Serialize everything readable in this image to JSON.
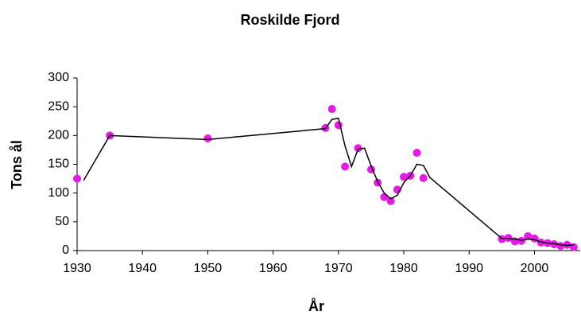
{
  "chart_data": {
    "type": "scatter",
    "title": "Roskilde Fjord",
    "x_label": "År",
    "y_label": "Tons ål",
    "xlim": [
      1930,
      2007
    ],
    "xticks": [
      1930,
      1940,
      1950,
      1960,
      1970,
      1980,
      1990,
      2000
    ],
    "ylim": [
      0,
      300
    ],
    "yticks": [
      0,
      50,
      100,
      150,
      200,
      250,
      300
    ],
    "grid": false,
    "series": [
      {
        "type": "scatter",
        "color": "#e619e6",
        "x": [
          1930,
          1935,
          1950,
          1968,
          1969,
          1970,
          1971,
          1973,
          1975,
          1976,
          1977,
          1978,
          1979,
          1980,
          1981,
          1982,
          1983,
          1995,
          1996,
          1997,
          1998,
          1999,
          2000,
          2001,
          2002,
          2003,
          2004,
          2005,
          2006
        ],
        "values": [
          125,
          200,
          195,
          213,
          246,
          218,
          146,
          178,
          141,
          118,
          93,
          86,
          106,
          128,
          130,
          170,
          126,
          20,
          22,
          16,
          17,
          25,
          21,
          14,
          13,
          11,
          8,
          10,
          6
        ]
      },
      {
        "type": "line",
        "color": "#000000",
        "x": [
          1931,
          1935,
          1950,
          1968,
          1969,
          1970,
          1971,
          1972,
          1973,
          1974,
          1975,
          1976,
          1977,
          1978,
          1979,
          1980,
          1981,
          1982,
          1983,
          1984,
          1995,
          1996,
          1997,
          1998,
          1999,
          2000,
          2001,
          2002,
          2003,
          2004,
          2005,
          2006
        ],
        "values": [
          122,
          200,
          193,
          212,
          228,
          230,
          182,
          146,
          176,
          178,
          147,
          120,
          100,
          90,
          96,
          118,
          130,
          150,
          148,
          127,
          21,
          21,
          20,
          18,
          20,
          19,
          15,
          13,
          12,
          10,
          9,
          10
        ]
      }
    ]
  }
}
